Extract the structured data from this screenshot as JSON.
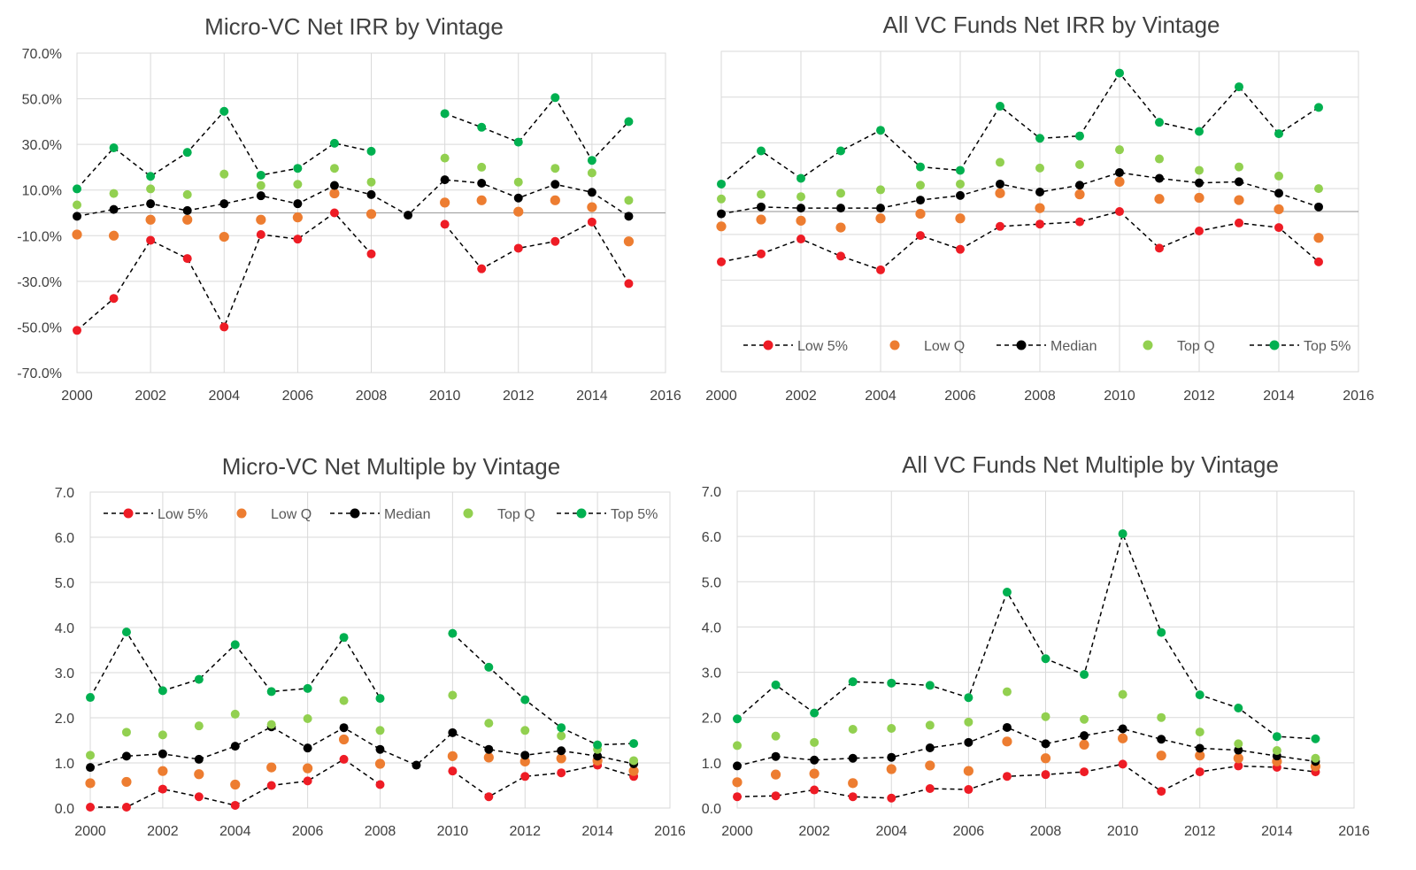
{
  "colors": {
    "low5": "#ee1c25",
    "lowq": "#ed7d31",
    "median": "#000000",
    "topq": "#92d050",
    "top5": "#00b050",
    "grid": "#d9d9d9",
    "text": "#404040"
  },
  "chart_data": [
    {
      "id": "micro-irr",
      "type": "line",
      "title": "Micro-VC Net IRR by Vintage",
      "xlabel": "",
      "ylabel": "",
      "xlim": [
        2000,
        2016
      ],
      "ylim": [
        -70,
        70
      ],
      "x_ticks": [
        "2000",
        "2002",
        "2004",
        "2006",
        "2008",
        "2010",
        "2012",
        "2014",
        "2016"
      ],
      "y_ticks": [
        "70.0%",
        "50.0%",
        "30.0%",
        "10.0%",
        "-10.0%",
        "-30.0%",
        "-50.0%",
        "-70.0%"
      ],
      "legend": null,
      "x": [
        2000,
        2001,
        2002,
        2003,
        2004,
        2005,
        2006,
        2007,
        2008,
        2009,
        2010,
        2011,
        2012,
        2013,
        2014,
        2015
      ],
      "series": [
        {
          "name": "Low 5%",
          "key": "low5",
          "style": "dashed-marker",
          "values": [
            -51.5,
            -37.5,
            -12,
            -20,
            -50,
            -9.5,
            -11.5,
            0,
            -18,
            null,
            -5,
            -24.5,
            -15.5,
            -12.5,
            -4,
            -31
          ]
        },
        {
          "name": "Low Q",
          "key": "lowq",
          "style": "marker",
          "values": [
            -9.5,
            -10,
            -3,
            -3,
            -10.5,
            -3,
            -2,
            8.5,
            -0.5,
            null,
            4.5,
            5.5,
            0.5,
            5.5,
            2.5,
            -12.5
          ]
        },
        {
          "name": "Median",
          "key": "median",
          "style": "dashed-marker",
          "values": [
            -1.5,
            1.5,
            4,
            1,
            4,
            7.5,
            4,
            12,
            8,
            -1,
            14.5,
            13,
            6.5,
            12.5,
            9,
            -1.5
          ]
        },
        {
          "name": "Top Q",
          "key": "topq",
          "style": "marker",
          "values": [
            3.5,
            8.5,
            10.5,
            8,
            17,
            12,
            12.5,
            19.5,
            13.5,
            null,
            24,
            20,
            13.5,
            19.5,
            17.5,
            5.5
          ]
        },
        {
          "name": "Top 5%",
          "key": "top5",
          "style": "dashed-marker",
          "values": [
            10.5,
            28.5,
            16,
            26.5,
            44.5,
            16.5,
            19.5,
            30.5,
            27,
            null,
            43.5,
            37.5,
            31,
            50.5,
            23,
            40
          ]
        }
      ]
    },
    {
      "id": "all-irr",
      "type": "line",
      "title": "All VC Funds Net IRR by Vintage",
      "xlabel": "",
      "ylabel": "",
      "xlim": [
        2000,
        2016
      ],
      "ylim": [
        -70,
        70
      ],
      "x_ticks": [
        "2000",
        "2002",
        "2004",
        "2006",
        "2008",
        "2010",
        "2012",
        "2014",
        "2016"
      ],
      "y_ticks": [],
      "legend": "bottom",
      "legend_labels": [
        "Low 5%",
        "Low Q",
        "Median",
        "Top Q",
        "Top 5%"
      ],
      "x": [
        2000,
        2001,
        2002,
        2003,
        2004,
        2005,
        2006,
        2007,
        2008,
        2009,
        2010,
        2011,
        2012,
        2013,
        2014,
        2015
      ],
      "series": [
        {
          "name": "Low 5%",
          "key": "low5",
          "style": "dashed-marker",
          "values": [
            -22,
            -18.5,
            -12,
            -19.5,
            -25.5,
            -10.5,
            -16.5,
            -6.5,
            -5.5,
            -4.5,
            0,
            -16,
            -8.5,
            -5,
            -7,
            -22
          ]
        },
        {
          "name": "Low Q",
          "key": "lowq",
          "style": "marker",
          "values": [
            -6.5,
            -3.5,
            -4,
            -7,
            -3,
            -1,
            -3,
            8,
            1.5,
            7.5,
            13,
            5.5,
            6,
            5,
            1,
            -11.5
          ]
        },
        {
          "name": "Median",
          "key": "median",
          "style": "dashed-marker",
          "values": [
            -1,
            2,
            1.5,
            1.5,
            1.5,
            5,
            7,
            12,
            8.5,
            11.5,
            17,
            14.5,
            12.5,
            13,
            8,
            2
          ]
        },
        {
          "name": "Top Q",
          "key": "topq",
          "style": "marker",
          "values": [
            5.5,
            7.5,
            6.5,
            8,
            9.5,
            11.5,
            12,
            21.5,
            19,
            20.5,
            27,
            23,
            18,
            19.5,
            15.5,
            10
          ]
        },
        {
          "name": "Top 5%",
          "key": "top5",
          "style": "dashed-marker",
          "values": [
            12,
            26.5,
            14.5,
            26.5,
            35.5,
            19.5,
            18,
            46,
            32,
            33,
            60.5,
            39,
            35,
            54.5,
            34,
            45.5
          ]
        }
      ]
    },
    {
      "id": "micro-mult",
      "type": "line",
      "title": "Micro-VC Net Multiple by Vintage",
      "xlabel": "",
      "ylabel": "",
      "xlim": [
        2000,
        2016
      ],
      "ylim": [
        0,
        7
      ],
      "x_ticks": [
        "2000",
        "2002",
        "2004",
        "2006",
        "2008",
        "2010",
        "2012",
        "2014",
        "2016"
      ],
      "y_ticks": [
        "7.0",
        "6.0",
        "5.0",
        "4.0",
        "3.0",
        "2.0",
        "1.0",
        "0.0"
      ],
      "legend": "top",
      "legend_labels": [
        "Low 5%",
        "Low Q",
        "Median",
        "Top Q",
        "Top 5%"
      ],
      "x": [
        2000,
        2001,
        2002,
        2003,
        2004,
        2005,
        2006,
        2007,
        2008,
        2009,
        2010,
        2011,
        2012,
        2013,
        2014,
        2015
      ],
      "series": [
        {
          "name": "Low 5%",
          "key": "low5",
          "style": "dashed-marker",
          "values": [
            0.02,
            0.02,
            0.42,
            0.25,
            0.06,
            0.5,
            0.6,
            1.08,
            0.52,
            null,
            0.82,
            0.25,
            0.7,
            0.78,
            0.95,
            0.7
          ]
        },
        {
          "name": "Low Q",
          "key": "lowq",
          "style": "marker",
          "values": [
            0.55,
            0.58,
            0.82,
            0.75,
            0.52,
            0.9,
            0.88,
            1.52,
            0.98,
            null,
            1.15,
            1.12,
            1.03,
            1.1,
            1.05,
            0.82
          ]
        },
        {
          "name": "Median",
          "key": "median",
          "style": "dashed-marker",
          "values": [
            0.9,
            1.15,
            1.2,
            1.08,
            1.37,
            1.8,
            1.33,
            1.78,
            1.3,
            0.95,
            1.67,
            1.3,
            1.17,
            1.27,
            1.15,
            0.98
          ]
        },
        {
          "name": "Top Q",
          "key": "topq",
          "style": "marker",
          "values": [
            1.17,
            1.68,
            1.62,
            1.82,
            2.08,
            1.85,
            1.98,
            2.38,
            1.72,
            null,
            2.5,
            1.88,
            1.72,
            1.6,
            1.3,
            1.05
          ]
        },
        {
          "name": "Top 5%",
          "key": "top5",
          "style": "dashed-marker",
          "values": [
            2.45,
            3.9,
            2.6,
            2.85,
            3.62,
            2.58,
            2.65,
            3.78,
            2.43,
            null,
            3.87,
            3.12,
            2.4,
            1.78,
            1.4,
            1.43
          ]
        }
      ]
    },
    {
      "id": "all-mult",
      "type": "line",
      "title": "All VC Funds Net Multiple by Vintage",
      "xlabel": "",
      "ylabel": "",
      "xlim": [
        2000,
        2016
      ],
      "ylim": [
        0,
        7
      ],
      "x_ticks": [
        "2000",
        "2002",
        "2004",
        "2006",
        "2008",
        "2010",
        "2012",
        "2014",
        "2016"
      ],
      "y_ticks": [
        "7.0",
        "6.0",
        "5.0",
        "4.0",
        "3.0",
        "2.0",
        "1.0",
        "0.0"
      ],
      "legend": null,
      "x": [
        2000,
        2001,
        2002,
        2003,
        2004,
        2005,
        2006,
        2007,
        2008,
        2009,
        2010,
        2011,
        2012,
        2013,
        2014,
        2015
      ],
      "series": [
        {
          "name": "Low 5%",
          "key": "low5",
          "style": "dashed-marker",
          "values": [
            0.25,
            0.27,
            0.4,
            0.25,
            0.22,
            0.43,
            0.41,
            0.7,
            0.74,
            0.8,
            0.97,
            0.37,
            0.8,
            0.93,
            0.9,
            0.8
          ]
        },
        {
          "name": "Low Q",
          "key": "lowq",
          "style": "marker",
          "values": [
            0.57,
            0.74,
            0.76,
            0.55,
            0.86,
            0.94,
            0.82,
            1.47,
            1.1,
            1.4,
            1.54,
            1.16,
            1.16,
            1.1,
            1.03,
            0.92
          ]
        },
        {
          "name": "Median",
          "key": "median",
          "style": "dashed-marker",
          "values": [
            0.93,
            1.14,
            1.06,
            1.1,
            1.12,
            1.33,
            1.45,
            1.78,
            1.42,
            1.6,
            1.75,
            1.52,
            1.32,
            1.28,
            1.15,
            1.03
          ]
        },
        {
          "name": "Top Q",
          "key": "topq",
          "style": "marker",
          "values": [
            1.38,
            1.59,
            1.45,
            1.74,
            1.76,
            1.83,
            1.9,
            2.57,
            2.02,
            1.96,
            2.51,
            2.0,
            1.68,
            1.42,
            1.27,
            1.1
          ]
        },
        {
          "name": "Top 5%",
          "key": "top5",
          "style": "dashed-marker",
          "values": [
            1.97,
            2.72,
            2.1,
            2.79,
            2.76,
            2.71,
            2.44,
            4.77,
            3.3,
            2.95,
            6.06,
            3.88,
            2.5,
            2.21,
            1.58,
            1.53
          ]
        }
      ]
    }
  ]
}
